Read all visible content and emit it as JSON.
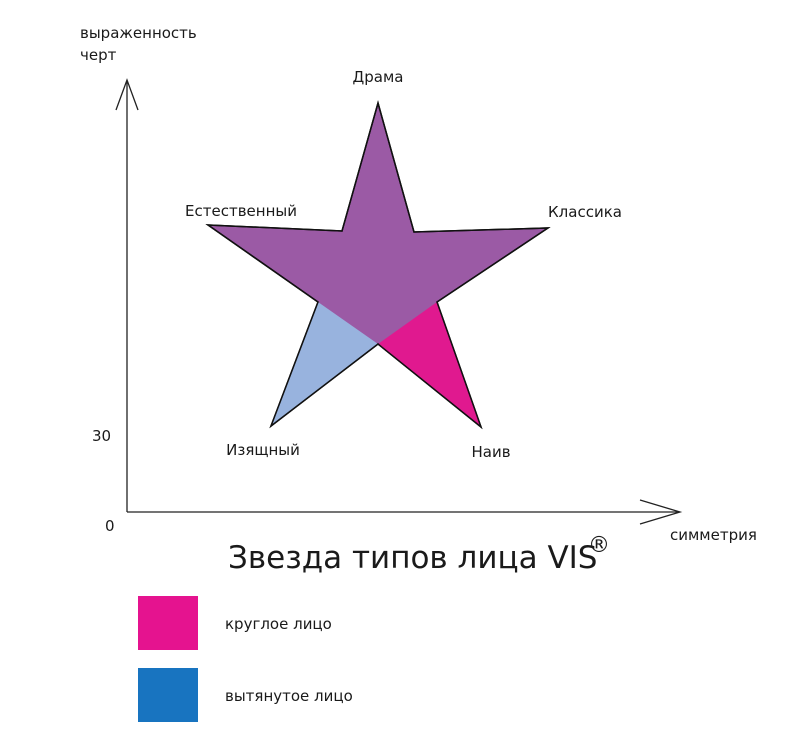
{
  "axes": {
    "y_label": [
      "выраженность",
      "черт"
    ],
    "y_mark": "30",
    "origin": "0",
    "x_label": "симметрия"
  },
  "star": {
    "points": [
      "Драма",
      "Естественный",
      "Классика",
      "Изящный",
      "Наив"
    ]
  },
  "title": {
    "text": "Звезда типов лица VIS",
    "mark": "®"
  },
  "legend": {
    "items": [
      "круглое лицо",
      "вытянутое лицо"
    ]
  }
}
